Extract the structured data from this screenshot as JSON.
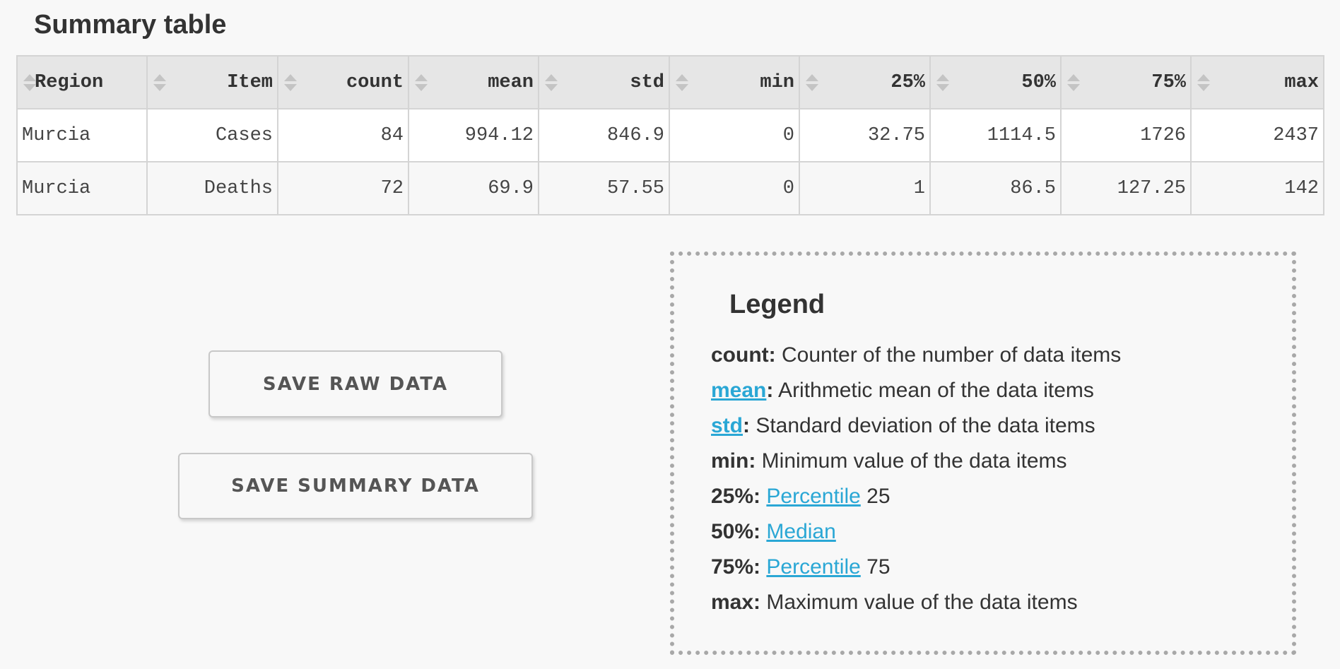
{
  "summary": {
    "title": "Summary table",
    "columns": [
      "Region",
      "Item",
      "count",
      "mean",
      "std",
      "min",
      "25%",
      "50%",
      "75%",
      "max"
    ],
    "rows": [
      [
        "Murcia",
        "Cases",
        "84",
        "994.12",
        "846.9",
        "0",
        "32.75",
        "1114.5",
        "1726",
        "2437"
      ],
      [
        "Murcia",
        "Deaths",
        "72",
        "69.9",
        "57.55",
        "0",
        "1",
        "86.5",
        "127.25",
        "142"
      ]
    ]
  },
  "buttons": {
    "save_raw": "SAVE RAW DATA",
    "save_summary": "SAVE SUMMARY DATA"
  },
  "legend": {
    "title": "Legend",
    "count": {
      "term": "count",
      "sep": ":",
      "desc": " Counter of the number of data items"
    },
    "mean": {
      "term": "mean",
      "sep": ":",
      "desc": " Arithmetic mean of the data items"
    },
    "std": {
      "term": "std",
      "sep": ":",
      "desc": " Standard deviation of the data items"
    },
    "min": {
      "term": "min",
      "sep": ":",
      "desc": " Minimum value of the data items"
    },
    "p25": {
      "term": "25%",
      "sep": ":",
      "link": "Percentile",
      "rest": " 25"
    },
    "p50": {
      "term": "50%",
      "sep": ":",
      "link": "Median"
    },
    "p75": {
      "term": "75%",
      "sep": ":",
      "link": "Percentile",
      "rest": " 75"
    },
    "max": {
      "term": "max",
      "sep": ":",
      "desc": " Maximum value of the data items"
    }
  },
  "colors": {
    "link": "#2aa7d5",
    "header_bg": "#e6e6e6",
    "page_bg": "#f8f8f8"
  }
}
